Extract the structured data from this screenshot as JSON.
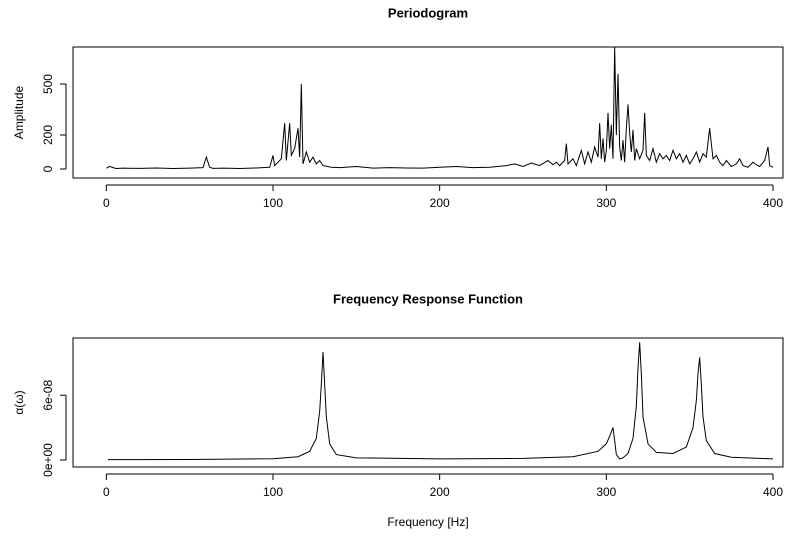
{
  "chart_data": [
    {
      "type": "line",
      "title": "Periodogram",
      "ylabel": "Amplitude",
      "color": "#000000",
      "xlim": [
        -20,
        406
      ],
      "xticks": [
        0,
        100,
        200,
        300,
        400
      ],
      "ylim": [
        -53,
        718
      ],
      "yticks": [
        0,
        200,
        500
      ],
      "x": [
        0,
        2,
        4,
        6,
        10,
        20,
        30,
        40,
        50,
        58,
        60,
        62,
        64,
        70,
        80,
        90,
        98,
        100,
        101,
        103,
        105,
        107,
        108,
        110,
        111,
        113,
        115,
        116,
        117,
        118,
        120,
        122,
        124,
        126,
        128,
        130,
        135,
        140,
        150,
        160,
        170,
        180,
        190,
        200,
        210,
        220,
        230,
        240,
        245,
        250,
        255,
        260,
        265,
        268,
        270,
        272,
        275,
        276,
        277,
        280,
        282,
        285,
        287,
        289,
        291,
        293,
        295,
        296,
        297,
        298,
        299,
        300,
        301,
        302,
        303,
        304,
        305,
        306,
        307,
        308,
        309,
        310,
        311,
        312,
        313,
        314,
        315,
        316,
        317,
        318,
        320,
        322,
        323,
        324,
        326,
        328,
        330,
        332,
        334,
        336,
        338,
        340,
        342,
        344,
        346,
        348,
        350,
        352,
        354,
        356,
        358,
        360,
        362,
        363,
        364,
        366,
        368,
        370,
        372,
        375,
        378,
        380,
        382,
        385,
        388,
        390,
        392,
        395,
        397,
        398,
        400
      ],
      "values": [
        5,
        15,
        8,
        3,
        5,
        4,
        6,
        3,
        5,
        8,
        70,
        10,
        4,
        5,
        3,
        6,
        10,
        80,
        20,
        40,
        60,
        270,
        50,
        270,
        80,
        120,
        240,
        70,
        500,
        30,
        100,
        40,
        70,
        30,
        50,
        20,
        10,
        8,
        15,
        5,
        8,
        6,
        5,
        10,
        15,
        8,
        10,
        20,
        30,
        15,
        35,
        20,
        50,
        25,
        40,
        20,
        50,
        150,
        30,
        60,
        20,
        110,
        30,
        100,
        40,
        130,
        70,
        270,
        60,
        180,
        40,
        110,
        330,
        120,
        260,
        60,
        720,
        200,
        560,
        130,
        50,
        170,
        40,
        240,
        380,
        210,
        100,
        230,
        50,
        120,
        60,
        110,
        330,
        80,
        50,
        120,
        40,
        90,
        60,
        80,
        50,
        110,
        60,
        90,
        40,
        80,
        30,
        60,
        100,
        40,
        90,
        70,
        240,
        150,
        60,
        80,
        40,
        20,
        50,
        15,
        30,
        60,
        20,
        10,
        40,
        25,
        15,
        50,
        130,
        20,
        10
      ]
    },
    {
      "type": "line",
      "title": "Frequency Response Function",
      "ylabel": "α(ω)",
      "xlabel": "Frequency [Hz]",
      "color": "#000000",
      "xlim": [
        -20,
        406
      ],
      "xticks": [
        0,
        100,
        200,
        300,
        400
      ],
      "ylim": [
        -6.5e-09,
        1.13e-07
      ],
      "yticks": [
        {
          "value": 0,
          "label": "0e+00"
        },
        {
          "value": 6e-08,
          "label": "6e-08"
        }
      ],
      "x": [
        1,
        50,
        100,
        115,
        122,
        126,
        128,
        129,
        130,
        131,
        132,
        134,
        138,
        150,
        200,
        250,
        280,
        295,
        300,
        302,
        304,
        305,
        306,
        308,
        310,
        313,
        316,
        318,
        319,
        320,
        321,
        322,
        325,
        330,
        340,
        348,
        352,
        354,
        355,
        356,
        357,
        358,
        360,
        365,
        375,
        400
      ],
      "values": [
        3e-10,
        4e-10,
        1.2e-09,
        3e-09,
        8e-09,
        2e-08,
        4.5e-08,
        7e-08,
        1e-07,
        7e-08,
        4e-08,
        1.5e-08,
        5e-09,
        2e-09,
        1e-09,
        1.5e-09,
        3e-09,
        8e-09,
        1.5e-08,
        2.2e-08,
        3e-08,
        1.8e-08,
        5e-09,
        1e-09,
        2e-09,
        6e-09,
        2e-08,
        5e-08,
        8.5e-08,
        1.09e-07,
        8e-08,
        4e-08,
        1.5e-08,
        7e-09,
        6e-09,
        1.2e-08,
        3e-08,
        5.5e-08,
        8e-08,
        9.5e-08,
        7e-08,
        4e-08,
        1.8e-08,
        6e-09,
        2.5e-09,
        1e-09
      ]
    }
  ]
}
